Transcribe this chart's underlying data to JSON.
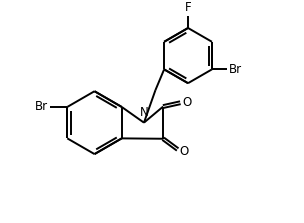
{
  "background_color": "#ffffff",
  "line_color": "#000000",
  "text_color": "#000000",
  "line_width": 1.4,
  "font_size": 8.5,
  "figsize": [
    3.04,
    2.23
  ],
  "dpi": 100,
  "xlim": [
    0.0,
    7.0
  ],
  "ylim": [
    0.0,
    5.5
  ]
}
